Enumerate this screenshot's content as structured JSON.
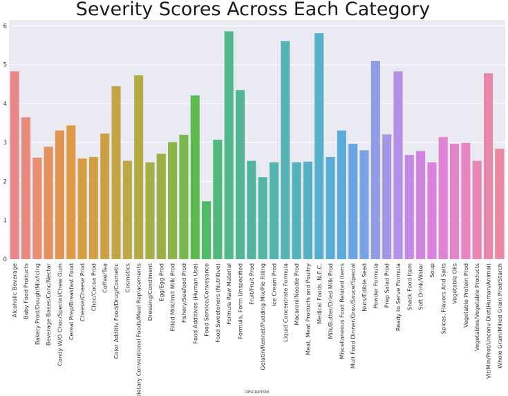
{
  "chart_data": {
    "type": "bar",
    "title": "Severity Scores Across Each Category",
    "xlabel": "DESCRIPTION",
    "ylabel": "",
    "ylim": [
      0,
      6.15
    ],
    "yticks": [
      0,
      1,
      2,
      3,
      4,
      5,
      6
    ],
    "grid": true,
    "categories": [
      "Alcoholic Beverage",
      "Baby Food Products",
      "Bakery Prod/Dough/Mix/Icing",
      "Beverage Bases/Conc/Nectar",
      "Candy W/O Choc/Special/Chew Gum",
      "Cereal Prep/Breakfast Food",
      "Cheese/Cheese Prod",
      "Choc/Cocoa Prod",
      "Coffee/Tea",
      "Color Additiv Food/Drug/Cosmetic",
      "Cosmetics",
      "Dietary Conventional Foods/Meal Replacements",
      "Dressing/Condiment",
      "Egg/Egg Prod",
      "Filled Milk/Imit Milk Prod",
      "Fishery/Seafood Prod",
      "Food Additives (Human Use)",
      "Food Service/Conveyance",
      "Food Sweeteners (Nutritive)",
      "Formula Raw Material",
      "Formula, Form Unspecified",
      "Fruit/Fruit Prod",
      "Gelatin/Rennet/Pudding Mix/Pie Filling",
      "Ice Cream Prod",
      "Liquid Concentrate Formula",
      "Macaroni/Noodle Prod",
      "Meat, Meat Products and Poultry",
      "Medical Foods, N.E.C.",
      "Milk/Butter/Dried Milk Prod",
      "Miscellaneous Food Related Items",
      "Mult Food Dinner/Grav/Sauce/Special",
      "Nuts/Edible Seed",
      "Powder Formula",
      "Prep Salad Prod",
      "Ready to Serve Formula",
      "Snack Food Item",
      "Soft Drink/Water",
      "Soup",
      "Spices, Flavors And Salts",
      "Vegetable Oils",
      "Vegetable Protein Prod",
      "Vegetables/Vegetable Products",
      "Vit/Min/Prot/Unconv Diet(Human/Animal)",
      "Whole Grain/Milled Grain Prod/Starch"
    ],
    "values": [
      4.83,
      3.65,
      2.61,
      2.89,
      3.31,
      3.44,
      2.59,
      2.63,
      3.23,
      4.45,
      2.53,
      4.73,
      2.49,
      2.71,
      3.01,
      3.2,
      4.21,
      1.49,
      3.07,
      5.86,
      4.35,
      2.53,
      2.11,
      2.49,
      5.61,
      2.49,
      2.51,
      5.81,
      2.63,
      3.31,
      2.97,
      2.8,
      5.1,
      3.21,
      4.83,
      2.68,
      2.78,
      2.49,
      3.14,
      2.97,
      2.99,
      2.53,
      4.78,
      2.84
    ],
    "colors": [
      "#ea8889",
      "#ea8a7d",
      "#e88f71",
      "#e4935e",
      "#e0964f",
      "#db9a43",
      "#d69d43",
      "#d19f44",
      "#caa244",
      "#c4a545",
      "#bda845",
      "#b2ab46",
      "#a6af47",
      "#9ab147",
      "#8bb448",
      "#78b749",
      "#5dbb4e",
      "#4fbb67",
      "#4fb97c",
      "#50b88b",
      "#51b796",
      "#52b69f",
      "#53b5a7",
      "#53b4ae",
      "#54b3b5",
      "#55b2bc",
      "#56b0c3",
      "#57afcb",
      "#58add4",
      "#5aaade",
      "#67a5e5",
      "#7ba1e6",
      "#919ce6",
      "#a397e6",
      "#b490e6",
      "#c48ae5",
      "#d284e3",
      "#dc81dd",
      "#e083d4",
      "#e384cb",
      "#e685c1",
      "#e886b6",
      "#e987ab",
      "#ea88a0"
    ]
  }
}
